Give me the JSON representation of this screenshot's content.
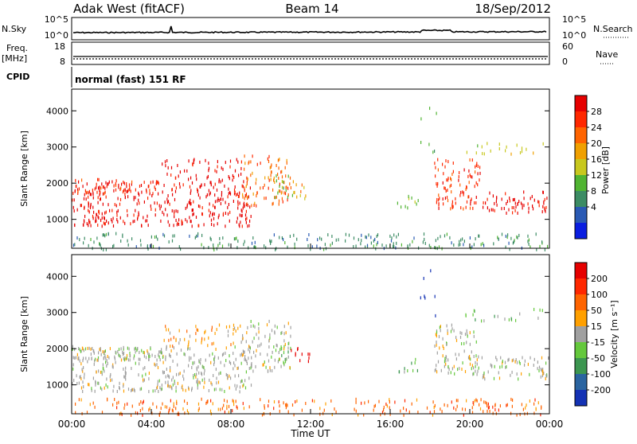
{
  "header": {
    "title": "Adak West (fitACF)",
    "beam": "Beam 14",
    "date": "18/Sep/2012"
  },
  "panels": {
    "nsky_label": "N.Sky",
    "nsearch_label": "N.Search",
    "nsky_ticks": [
      "10^5",
      "10^0"
    ],
    "nsearch_ticks": [
      "10^5",
      "10^0"
    ],
    "freq_label": "Freq.",
    "freq_unit": "[MHz]",
    "freq_ticks": [
      "18",
      "8"
    ],
    "nave_label": "Nave",
    "nave_ticks": [
      "60",
      "0"
    ],
    "cpid_label": "CPID",
    "cpid_text": "normal (fast) 151 RF"
  },
  "chart_data": [
    {
      "type": "heatmap",
      "title": "Power",
      "ylabel": "Slant Range [km]",
      "xlabel": "Time UT",
      "colorbar_label": "Power [dB]",
      "colorbar_ticks": [
        "28",
        "24",
        "20",
        "16",
        "12",
        "8",
        "4"
      ],
      "colors": [
        "#0a1ee0",
        "#2a5ab4",
        "#3c8c64",
        "#50b432",
        "#c8c81e",
        "#f0a000",
        "#ff6400",
        "#ff2800",
        "#e60000"
      ],
      "ylim": [
        200,
        4600
      ],
      "yticks": [
        "4000",
        "3000",
        "2000",
        "1000"
      ],
      "xlim": [
        "00:00",
        "24:00"
      ],
      "xticks": [
        "00:00",
        "04:00",
        "08:00",
        "12:00",
        "16:00",
        "20:00",
        "00:00"
      ]
    },
    {
      "type": "heatmap",
      "title": "Velocity",
      "ylabel": "Slant Range [km]",
      "xlabel": "Time UT",
      "colorbar_label": "Velocity [m s⁻¹]",
      "colorbar_ticks": [
        "200",
        "100",
        "50",
        "15",
        "-15",
        "-50",
        "-100",
        "-200"
      ],
      "colors": [
        "#1432b4",
        "#2a64a0",
        "#3c9650",
        "#64c83c",
        "#a0a0a0",
        "#ffa000",
        "#ff6400",
        "#ff2800",
        "#e60000"
      ],
      "ylim": [
        200,
        4600
      ],
      "yticks": [
        "4000",
        "3000",
        "2000",
        "1000"
      ],
      "xlim": [
        "00:00",
        "24:00"
      ],
      "xticks": [
        "00:00",
        "04:00",
        "08:00",
        "12:00",
        "16:00",
        "20:00",
        "00:00"
      ]
    }
  ]
}
